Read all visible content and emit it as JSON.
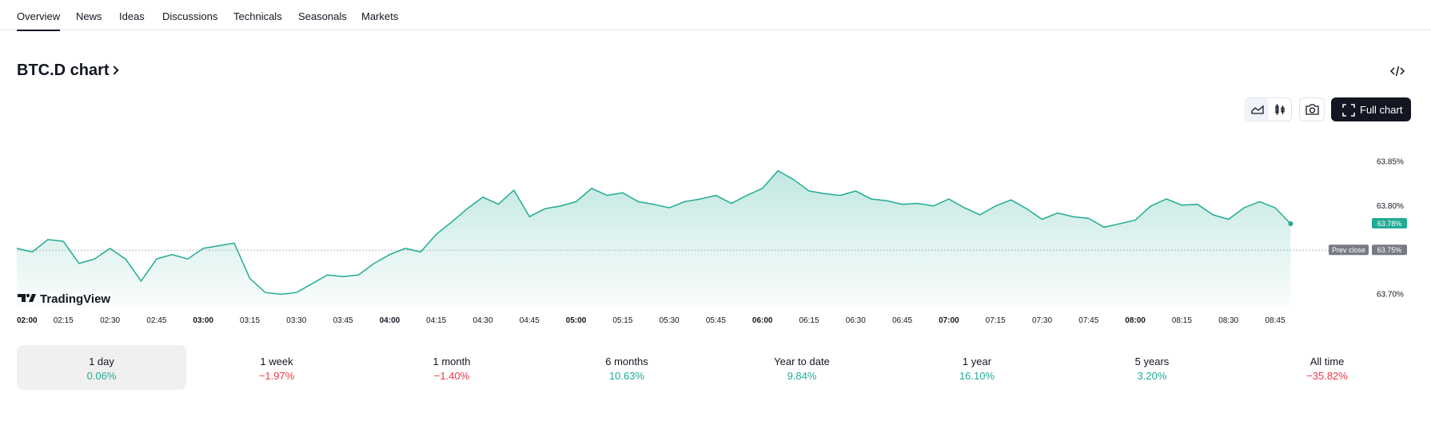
{
  "tabs": [
    {
      "label": "Overview",
      "active": true
    },
    {
      "label": "News"
    },
    {
      "label": "Ideas"
    },
    {
      "label": "Discussions"
    },
    {
      "label": "Technicals"
    },
    {
      "label": "Seasonals"
    },
    {
      "label": "Markets"
    }
  ],
  "header": {
    "title": "BTC.D chart"
  },
  "toolbar": {
    "full_chart_label": "Full chart",
    "icons": [
      "area-chart-icon",
      "candles-icon",
      "camera-icon",
      "fullscreen-icon",
      "embed-code-icon"
    ]
  },
  "colors": {
    "line": "#22ab94",
    "positive": "#22ab94",
    "negative": "#f23645",
    "prev_close": "#787b86"
  },
  "watermark": "TradingView",
  "chart_data": {
    "type": "area",
    "y_unit": "%",
    "ylim": [
      63.685,
      63.875
    ],
    "y_ticks": [
      "63.85%",
      "63.80%",
      "63.75%",
      "63.70%"
    ],
    "y_tick_values": [
      63.85,
      63.8,
      63.75,
      63.7
    ],
    "x_ticks": [
      "02:00",
      "02:15",
      "02:30",
      "02:45",
      "03:00",
      "03:15",
      "03:30",
      "03:45",
      "04:00",
      "04:15",
      "04:30",
      "04:45",
      "05:00",
      "05:15",
      "05:30",
      "05:45",
      "06:00",
      "06:15",
      "06:30",
      "06:45",
      "07:00",
      "07:15",
      "07:30",
      "07:45",
      "08:00",
      "08:15",
      "08:30",
      "08:45"
    ],
    "x_ticks_bold": [
      "02:00",
      "03:00",
      "04:00",
      "05:00",
      "06:00",
      "07:00",
      "08:00"
    ],
    "last_value_label": "63.78%",
    "prev_close_label": "Prev close",
    "prev_close_value_label": "63.75%",
    "prev_close": 63.75,
    "series": [
      {
        "times": [
          "02:00",
          "02:05",
          "02:10",
          "02:15",
          "02:20",
          "02:25",
          "02:30",
          "02:35",
          "02:40",
          "02:45",
          "02:50",
          "02:55",
          "03:00",
          "03:05",
          "03:10",
          "03:15",
          "03:20",
          "03:25",
          "03:30",
          "03:35",
          "03:40",
          "03:45",
          "03:50",
          "03:55",
          "04:00",
          "04:05",
          "04:10",
          "04:15",
          "04:20",
          "04:25",
          "04:30",
          "04:35",
          "04:40",
          "04:45",
          "04:50",
          "04:55",
          "05:00",
          "05:05",
          "05:10",
          "05:15",
          "05:20",
          "05:25",
          "05:30",
          "05:35",
          "05:40",
          "05:45",
          "05:50",
          "05:55",
          "06:00",
          "06:05",
          "06:10",
          "06:15",
          "06:20",
          "06:25",
          "06:30",
          "06:35",
          "06:40",
          "06:45",
          "06:50",
          "06:55",
          "07:00",
          "07:05",
          "07:10",
          "07:15",
          "07:20",
          "07:25",
          "07:30",
          "07:35",
          "07:40",
          "07:45",
          "07:50",
          "07:55",
          "08:00",
          "08:05",
          "08:10",
          "08:15",
          "08:20",
          "08:25",
          "08:30",
          "08:35",
          "08:40",
          "08:45",
          "08:50"
        ],
        "values": [
          63.752,
          63.748,
          63.762,
          63.76,
          63.735,
          63.74,
          63.752,
          63.74,
          63.715,
          63.74,
          63.745,
          63.74,
          63.752,
          63.755,
          63.758,
          63.718,
          63.702,
          63.7,
          63.702,
          63.712,
          63.722,
          63.72,
          63.722,
          63.735,
          63.745,
          63.752,
          63.748,
          63.768,
          63.782,
          63.797,
          63.81,
          63.802,
          63.818,
          63.788,
          63.797,
          63.8,
          63.805,
          63.82,
          63.812,
          63.815,
          63.805,
          63.802,
          63.798,
          63.805,
          63.808,
          63.812,
          63.803,
          63.812,
          63.82,
          63.84,
          63.83,
          63.817,
          63.814,
          63.812,
          63.817,
          63.808,
          63.806,
          63.802,
          63.803,
          63.8,
          63.808,
          63.798,
          63.79,
          63.8,
          63.807,
          63.797,
          63.785,
          63.792,
          63.788,
          63.786,
          63.776,
          63.78,
          63.784,
          63.8,
          63.808,
          63.801,
          63.802,
          63.79,
          63.785,
          63.798,
          63.805,
          63.798,
          63.78
        ]
      }
    ]
  },
  "periods": [
    {
      "label": "1 day",
      "value": "0.06%",
      "sign": "pos",
      "active": true
    },
    {
      "label": "1 week",
      "value": "−1.97%",
      "sign": "neg"
    },
    {
      "label": "1 month",
      "value": "−1.40%",
      "sign": "neg"
    },
    {
      "label": "6 months",
      "value": "10.63%",
      "sign": "pos"
    },
    {
      "label": "Year to date",
      "value": "9.84%",
      "sign": "pos"
    },
    {
      "label": "1 year",
      "value": "16.10%",
      "sign": "pos"
    },
    {
      "label": "5 years",
      "value": "3.20%",
      "sign": "pos"
    },
    {
      "label": "All time",
      "value": "−35.82%",
      "sign": "neg"
    }
  ]
}
